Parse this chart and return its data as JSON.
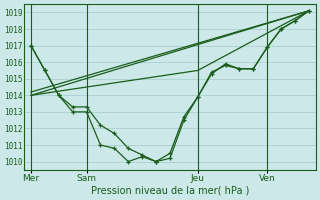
{
  "background_color": "#cce8e8",
  "grid_color": "#a8d0d0",
  "line_color": "#1a5c1a",
  "text_color": "#1a5c1a",
  "ylabel_ticks": [
    1010,
    1011,
    1012,
    1013,
    1014,
    1015,
    1016,
    1017,
    1018,
    1019
  ],
  "xlabel": "Pression niveau de la mer( hPa )",
  "day_labels": [
    "Mer",
    "Sam",
    "Jeu",
    "Ven"
  ],
  "day_positions": [
    0,
    4,
    12,
    17
  ],
  "ylim": [
    1009.5,
    1019.5
  ],
  "xlim": [
    -0.5,
    20.5
  ],
  "series1_x": [
    0,
    1,
    2,
    3,
    4,
    5,
    6,
    7,
    8,
    9,
    10,
    11,
    12,
    13,
    14,
    15,
    16,
    17,
    18,
    19,
    20
  ],
  "series1_y": [
    1017.0,
    1015.5,
    1014.0,
    1013.3,
    1013.3,
    1012.2,
    1011.7,
    1010.8,
    1010.4,
    1010.0,
    1010.5,
    1012.7,
    1013.9,
    1015.4,
    1015.8,
    1015.6,
    1015.6,
    1016.9,
    1018.0,
    1018.5,
    1019.1
  ],
  "series2_x": [
    0,
    1,
    2,
    3,
    4,
    5,
    6,
    7,
    8,
    9,
    10,
    11,
    12,
    13,
    14,
    15,
    16,
    17,
    18,
    19,
    20
  ],
  "series2_y": [
    1017.0,
    1015.5,
    1014.0,
    1013.0,
    1013.0,
    1011.0,
    1010.8,
    1010.0,
    1010.3,
    1010.0,
    1010.2,
    1012.5,
    1013.9,
    1015.3,
    1015.9,
    1015.6,
    1015.6,
    1016.9,
    1018.0,
    1018.5,
    1019.1
  ],
  "trend1_x": [
    0,
    20
  ],
  "trend1_y": [
    1014.0,
    1019.1
  ],
  "trend2_x": [
    0,
    12,
    20
  ],
  "trend2_y": [
    1014.0,
    1015.5,
    1019.1
  ],
  "trend3_x": [
    0,
    20
  ],
  "trend3_y": [
    1014.2,
    1019.1
  ]
}
